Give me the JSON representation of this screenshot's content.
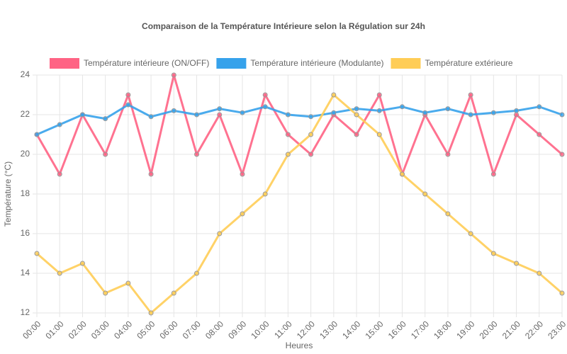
{
  "chart_data": {
    "type": "line",
    "title": "Comparaison de la Température Intérieure selon la Régulation sur 24h",
    "x_label": "Heures",
    "y_label": "Température (°C)",
    "categories": [
      "00:00",
      "01:00",
      "02:00",
      "03:00",
      "04:00",
      "05:00",
      "06:00",
      "07:00",
      "08:00",
      "09:00",
      "10:00",
      "11:00",
      "12:00",
      "13:00",
      "14:00",
      "15:00",
      "16:00",
      "17:00",
      "18:00",
      "19:00",
      "20:00",
      "21:00",
      "22:00",
      "23:00"
    ],
    "series": [
      {
        "name": "Température intérieure (ON/OFF)",
        "color": "#ff6384",
        "values": [
          21,
          19,
          22,
          20,
          23,
          19,
          24,
          20,
          22,
          19,
          23,
          21,
          20,
          22,
          21,
          23,
          19,
          22,
          20,
          23,
          19,
          22,
          21,
          20
        ]
      },
      {
        "name": "Température intérieure (Modulante)",
        "color": "#36a2eb",
        "values": [
          21,
          21.5,
          22,
          21.8,
          22.5,
          21.9,
          22.2,
          22,
          22.3,
          22.1,
          22.4,
          22,
          21.9,
          22.1,
          22.3,
          22.2,
          22.4,
          22.1,
          22.3,
          22,
          22.1,
          22.2,
          22.4,
          22
        ]
      },
      {
        "name": "Température extérieure",
        "color": "#ffcd56",
        "values": [
          15,
          14,
          14.5,
          13,
          13.5,
          12,
          13,
          14,
          16,
          17,
          18,
          20,
          21,
          23,
          22,
          21,
          19,
          18,
          17,
          16,
          15,
          14.5,
          14,
          13
        ]
      }
    ],
    "ylim": [
      12,
      24
    ],
    "yticks": [
      12,
      14,
      16,
      18,
      20,
      22,
      24
    ],
    "grid": true
  }
}
